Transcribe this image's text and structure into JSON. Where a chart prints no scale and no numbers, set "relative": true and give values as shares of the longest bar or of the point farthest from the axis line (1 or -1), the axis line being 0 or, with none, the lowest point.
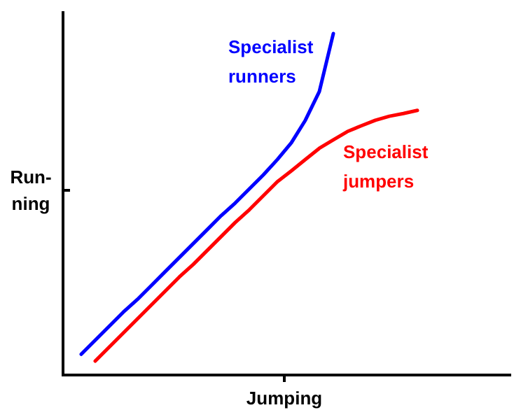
{
  "chart_data": {
    "type": "line",
    "relative": true,
    "xlabel": "Jumping",
    "ylabel": "Run-ning",
    "marker": "none",
    "line_style": "solid",
    "categories": [
      null,
      null,
      null,
      null,
      null,
      null,
      null,
      null,
      null,
      null,
      null,
      null,
      null,
      null,
      null,
      null,
      null,
      null,
      null,
      null,
      null,
      null,
      null,
      null,
      null
    ],
    "series": [
      {
        "name": "Specialist runners",
        "color": "#0000ff",
        "values": [
          0.061,
          0.102,
          0.143,
          0.184,
          0.221,
          0.262,
          0.303,
          0.344,
          0.385,
          0.426,
          0.467,
          0.504,
          0.545,
          0.586,
          0.631,
          0.68,
          0.746,
          0.83,
          1,
          null,
          null,
          null,
          null,
          null,
          null
        ]
      },
      {
        "name": "Specialist jumpers",
        "color": "#ff0000",
        "values": [
          null,
          0.041,
          0.082,
          0.123,
          0.164,
          0.205,
          0.246,
          0.287,
          0.324,
          0.365,
          0.406,
          0.447,
          0.484,
          0.525,
          0.566,
          0.598,
          0.631,
          0.664,
          0.689,
          0.713,
          0.73,
          0.746,
          0.758,
          0.766,
          0.775
        ]
      }
    ]
  }
}
